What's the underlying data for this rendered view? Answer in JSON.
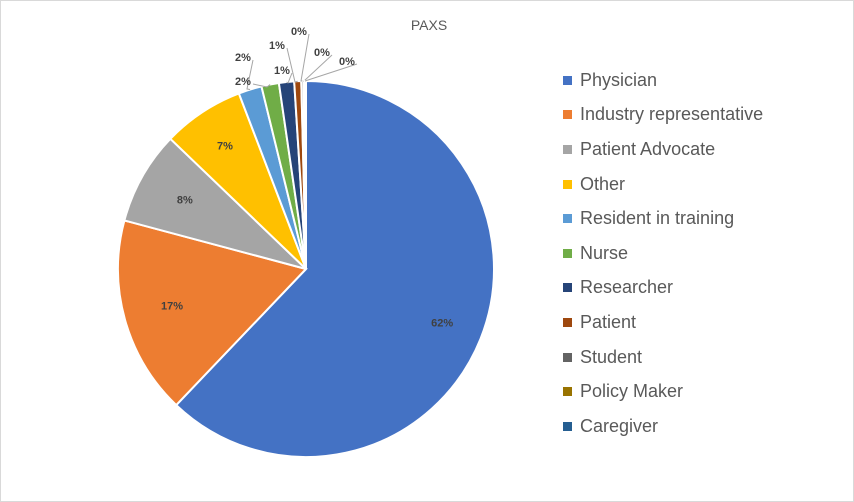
{
  "chart_data": {
    "type": "pie",
    "title": "PAXS",
    "categories": [
      "Physician",
      "Industry representative",
      "Patient Advocate",
      "Other",
      "Resident in training",
      "Nurse",
      "Researcher",
      "Patient",
      "Student",
      "Policy Maker",
      "Caregiver"
    ],
    "values": [
      62,
      17,
      8,
      7,
      2,
      1.5,
      1.3,
      0.6,
      0.2,
      0.1,
      0.1
    ],
    "data_labels": [
      "62%",
      "17%",
      "8%",
      "7%",
      "2%",
      "2%",
      "1%",
      "1%",
      "0%",
      "0%",
      "0%"
    ],
    "colors": [
      "#4472C4",
      "#ED7D31",
      "#A5A5A5",
      "#FFC000",
      "#5B9BD5",
      "#70AD47",
      "#264478",
      "#9E480E",
      "#636363",
      "#997300",
      "#255E91"
    ],
    "legend_position": "right",
    "start_angle": "12 o'clock, clockwise"
  }
}
